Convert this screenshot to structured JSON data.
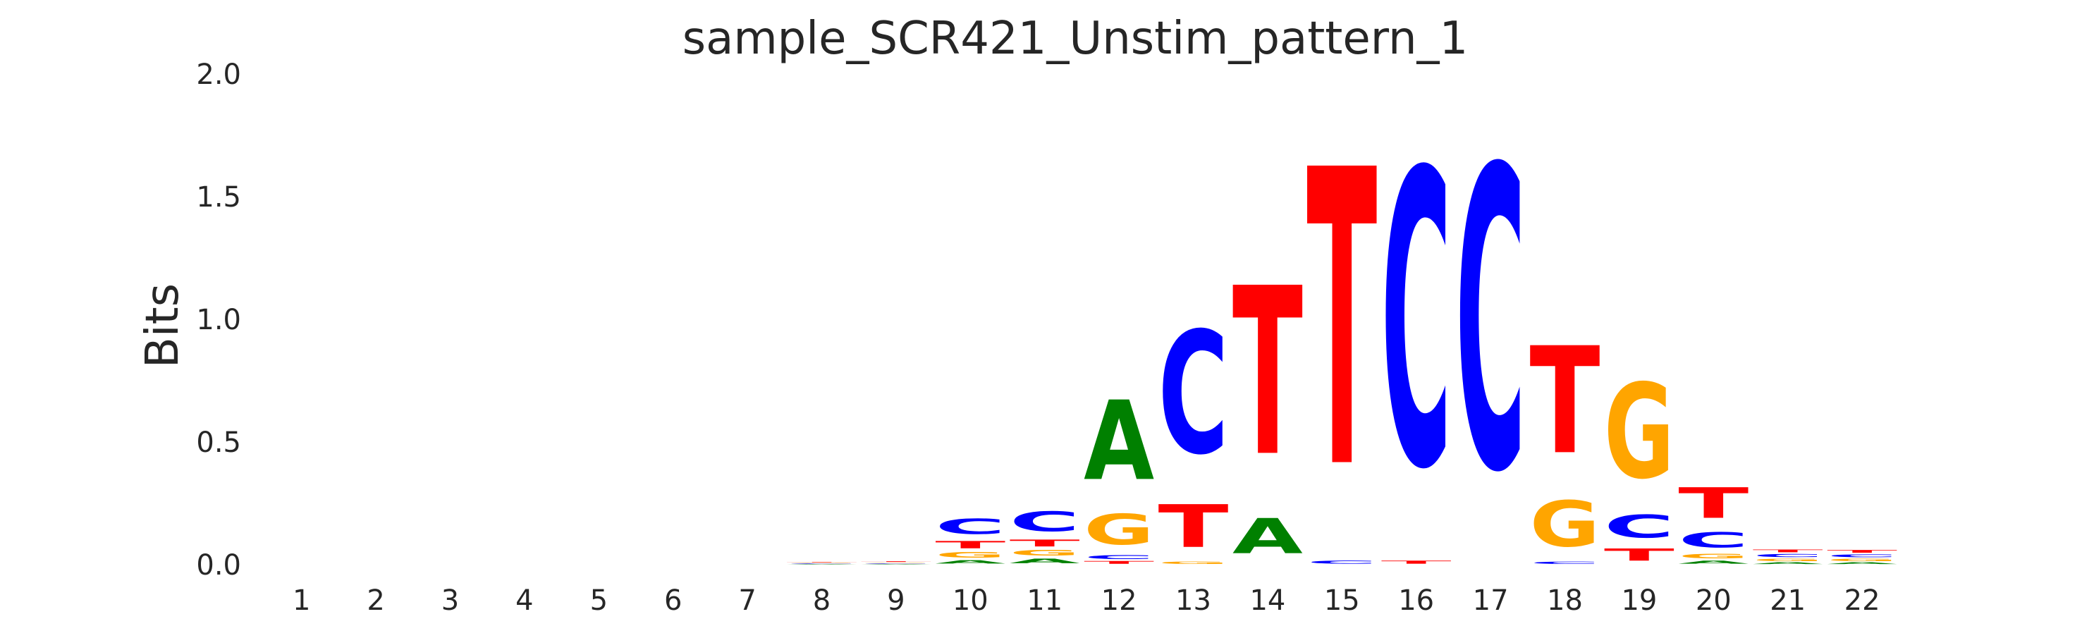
{
  "chart_data": {
    "type": "sequence_logo",
    "title": "sample_SCR421_Unstim_pattern_1",
    "xlabel": "",
    "ylabel": "Bits",
    "ylim": [
      0,
      2.0
    ],
    "y_ticks": [
      "0.0",
      "0.5",
      "1.0",
      "1.5",
      "2.0"
    ],
    "y_tick_values": [
      0,
      0.5,
      1.0,
      1.5,
      2.0
    ],
    "x_ticks": [
      "1",
      "2",
      "3",
      "4",
      "5",
      "6",
      "7",
      "8",
      "9",
      "10",
      "11",
      "12",
      "13",
      "14",
      "15",
      "16",
      "17",
      "18",
      "19",
      "20",
      "21",
      "22"
    ],
    "grid": false,
    "colors": {
      "A": "#008000",
      "C": "#0000ff",
      "G": "#ffa500",
      "T": "#ff0000"
    },
    "positions": [
      {
        "pos": 1,
        "stack": []
      },
      {
        "pos": 2,
        "stack": []
      },
      {
        "pos": 3,
        "stack": []
      },
      {
        "pos": 4,
        "stack": []
      },
      {
        "pos": 5,
        "stack": []
      },
      {
        "pos": 6,
        "stack": []
      },
      {
        "pos": 7,
        "stack": []
      },
      {
        "pos": 8,
        "stack": [
          {
            "base": "A",
            "bits": 0.003
          },
          {
            "base": "C",
            "bits": 0.003
          },
          {
            "base": "G",
            "bits": 0.003
          },
          {
            "base": "T",
            "bits": 0.003
          }
        ]
      },
      {
        "pos": 9,
        "stack": [
          {
            "base": "A",
            "bits": 0.003
          },
          {
            "base": "C",
            "bits": 0.003
          },
          {
            "base": "G",
            "bits": 0.004
          },
          {
            "base": "T",
            "bits": 0.005
          }
        ]
      },
      {
        "pos": 10,
        "stack": [
          {
            "base": "A",
            "bits": 0.022
          },
          {
            "base": "G",
            "bits": 0.035
          },
          {
            "base": "T",
            "bits": 0.048
          },
          {
            "base": "C",
            "bits": 0.1
          }
        ]
      },
      {
        "pos": 11,
        "stack": [
          {
            "base": "A",
            "bits": 0.03
          },
          {
            "base": "G",
            "bits": 0.035
          },
          {
            "base": "T",
            "bits": 0.045
          },
          {
            "base": "C",
            "bits": 0.13
          }
        ]
      },
      {
        "pos": 12,
        "stack": [
          {
            "base": "T",
            "bits": 0.018
          },
          {
            "base": "C",
            "bits": 0.025
          },
          {
            "base": "G",
            "bits": 0.2
          },
          {
            "base": "A",
            "bits": 0.52
          }
        ]
      },
      {
        "pos": 13,
        "stack": [
          {
            "base": "G",
            "bits": 0.015
          },
          {
            "base": "T",
            "bits": 0.28
          },
          {
            "base": "C",
            "bits": 0.8
          }
        ]
      },
      {
        "pos": 14,
        "stack": [
          {
            "base": "A",
            "bits": 0.23
          },
          {
            "base": "T",
            "bits": 1.1
          }
        ]
      },
      {
        "pos": 15,
        "stack": [
          {
            "base": "C",
            "bits": 0.02
          },
          {
            "base": "T",
            "bits": 1.94
          }
        ]
      },
      {
        "pos": 16,
        "stack": [
          {
            "base": "T",
            "bits": 0.02
          },
          {
            "base": "C",
            "bits": 1.93
          }
        ]
      },
      {
        "pos": 17,
        "stack": [
          {
            "base": "C",
            "bits": 1.97
          }
        ]
      },
      {
        "pos": 18,
        "stack": [
          {
            "base": "C",
            "bits": 0.015
          },
          {
            "base": "G",
            "bits": 0.3
          },
          {
            "base": "T",
            "bits": 0.7
          }
        ]
      },
      {
        "pos": 19,
        "stack": [
          {
            "base": "T",
            "bits": 0.08
          },
          {
            "base": "C",
            "bits": 0.15
          },
          {
            "base": "G",
            "bits": 0.62
          }
        ]
      },
      {
        "pos": 20,
        "stack": [
          {
            "base": "A",
            "bits": 0.02
          },
          {
            "base": "G",
            "bits": 0.03
          },
          {
            "base": "C",
            "bits": 0.1
          },
          {
            "base": "T",
            "bits": 0.2
          }
        ]
      },
      {
        "pos": 21,
        "stack": [
          {
            "base": "A",
            "bits": 0.012
          },
          {
            "base": "G",
            "bits": 0.015
          },
          {
            "base": "C",
            "bits": 0.02
          },
          {
            "base": "T",
            "bits": 0.018
          }
        ]
      },
      {
        "pos": 22,
        "stack": [
          {
            "base": "A",
            "bits": 0.012
          },
          {
            "base": "G",
            "bits": 0.015
          },
          {
            "base": "C",
            "bits": 0.018
          },
          {
            "base": "T",
            "bits": 0.018
          }
        ]
      }
    ]
  }
}
